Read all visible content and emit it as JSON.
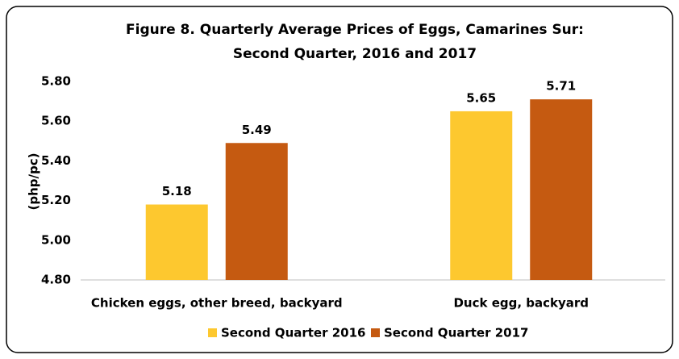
{
  "chart_data": {
    "type": "bar",
    "title": [
      "Figure 8. Quarterly Average Prices of Eggs, Camarines Sur:",
      "Second Quarter, 2016 and 2017"
    ],
    "y_label": "(php/pc)",
    "categories": [
      "Chicken eggs, other breed, backyard",
      "Duck egg, backyard"
    ],
    "series": [
      {
        "name": "Second Quarter 2016",
        "color": "#fdc82f",
        "values": [
          5.18,
          5.65
        ]
      },
      {
        "name": "Second Quarter 2017",
        "color": "#c55a11",
        "values": [
          5.49,
          5.71
        ]
      }
    ],
    "ylim": [
      4.8,
      5.8
    ],
    "yticks": [
      {
        "value": 4.8,
        "label": "4.80"
      },
      {
        "value": 5.0,
        "label": "5.00"
      },
      {
        "value": 5.2,
        "label": "5.20"
      },
      {
        "value": 5.4,
        "label": "5.40"
      },
      {
        "value": 5.6,
        "label": "5.60"
      },
      {
        "value": 5.8,
        "label": "5.80"
      }
    ],
    "grid": false,
    "legend": "bottom"
  }
}
